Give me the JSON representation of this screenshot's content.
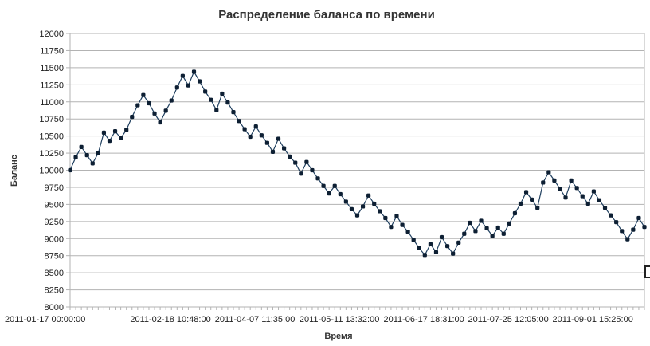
{
  "colors": {
    "line": "#1f3f5f",
    "marker": "#0d1f33",
    "grid": "#b3b3b3"
  },
  "chart_data": {
    "type": "line",
    "title": "Распределение баланса по времени",
    "xlabel": "Время",
    "ylabel": "Баланс",
    "ylim": [
      8000,
      12000
    ],
    "y_ticks": [
      8000,
      8250,
      8500,
      8750,
      9000,
      9250,
      9500,
      9750,
      10000,
      10250,
      10500,
      10750,
      11000,
      11250,
      11500,
      11750,
      12000
    ],
    "y_tick_labels": [
      "8000",
      "8250",
      "8500",
      "8750",
      "9000",
      "9250",
      "9500",
      "9750",
      "10000",
      "10250",
      "10500",
      "10750",
      "11000",
      "11250",
      "11500",
      "11750",
      "12000"
    ],
    "x_tick_labels": [
      "2011-01-17 00:00:00",
      "2011-02-18 10:48:00",
      "2011-04-07 11:35:00",
      "2011-05-11 13:32:00",
      "2011-06-17 18:31:00",
      "2011-07-25 12:05:00",
      "2011-09-01 15:25:00"
    ],
    "x_tick_label_index": [
      0,
      15,
      30,
      45,
      60,
      75,
      90
    ],
    "grid": true,
    "legend": "none",
    "series": [
      {
        "values": [
          10000,
          10190,
          10340,
          10220,
          10100,
          10250,
          10550,
          10430,
          10570,
          10470,
          10590,
          10780,
          10950,
          11100,
          10980,
          10830,
          10700,
          10870,
          11020,
          11210,
          11380,
          11240,
          11440,
          11300,
          11150,
          11030,
          10880,
          11120,
          10990,
          10850,
          10720,
          10600,
          10490,
          10640,
          10510,
          10400,
          10270,
          10460,
          10320,
          10200,
          10110,
          9950,
          10120,
          10000,
          9880,
          9770,
          9660,
          9770,
          9650,
          9540,
          9430,
          9340,
          9470,
          9630,
          9510,
          9400,
          9300,
          9170,
          9330,
          9200,
          9100,
          8980,
          8860,
          8760,
          8920,
          8800,
          9020,
          8890,
          8780,
          8940,
          9070,
          9230,
          9110,
          9260,
          9150,
          9040,
          9160,
          9070,
          9220,
          9370,
          9510,
          9680,
          9570,
          9450,
          9820,
          9970,
          9850,
          9730,
          9600,
          9850,
          9740,
          9620,
          9510,
          9690,
          9560,
          9450,
          9340,
          9240,
          9110,
          8990,
          9130,
          9300,
          9170
        ]
      }
    ]
  }
}
